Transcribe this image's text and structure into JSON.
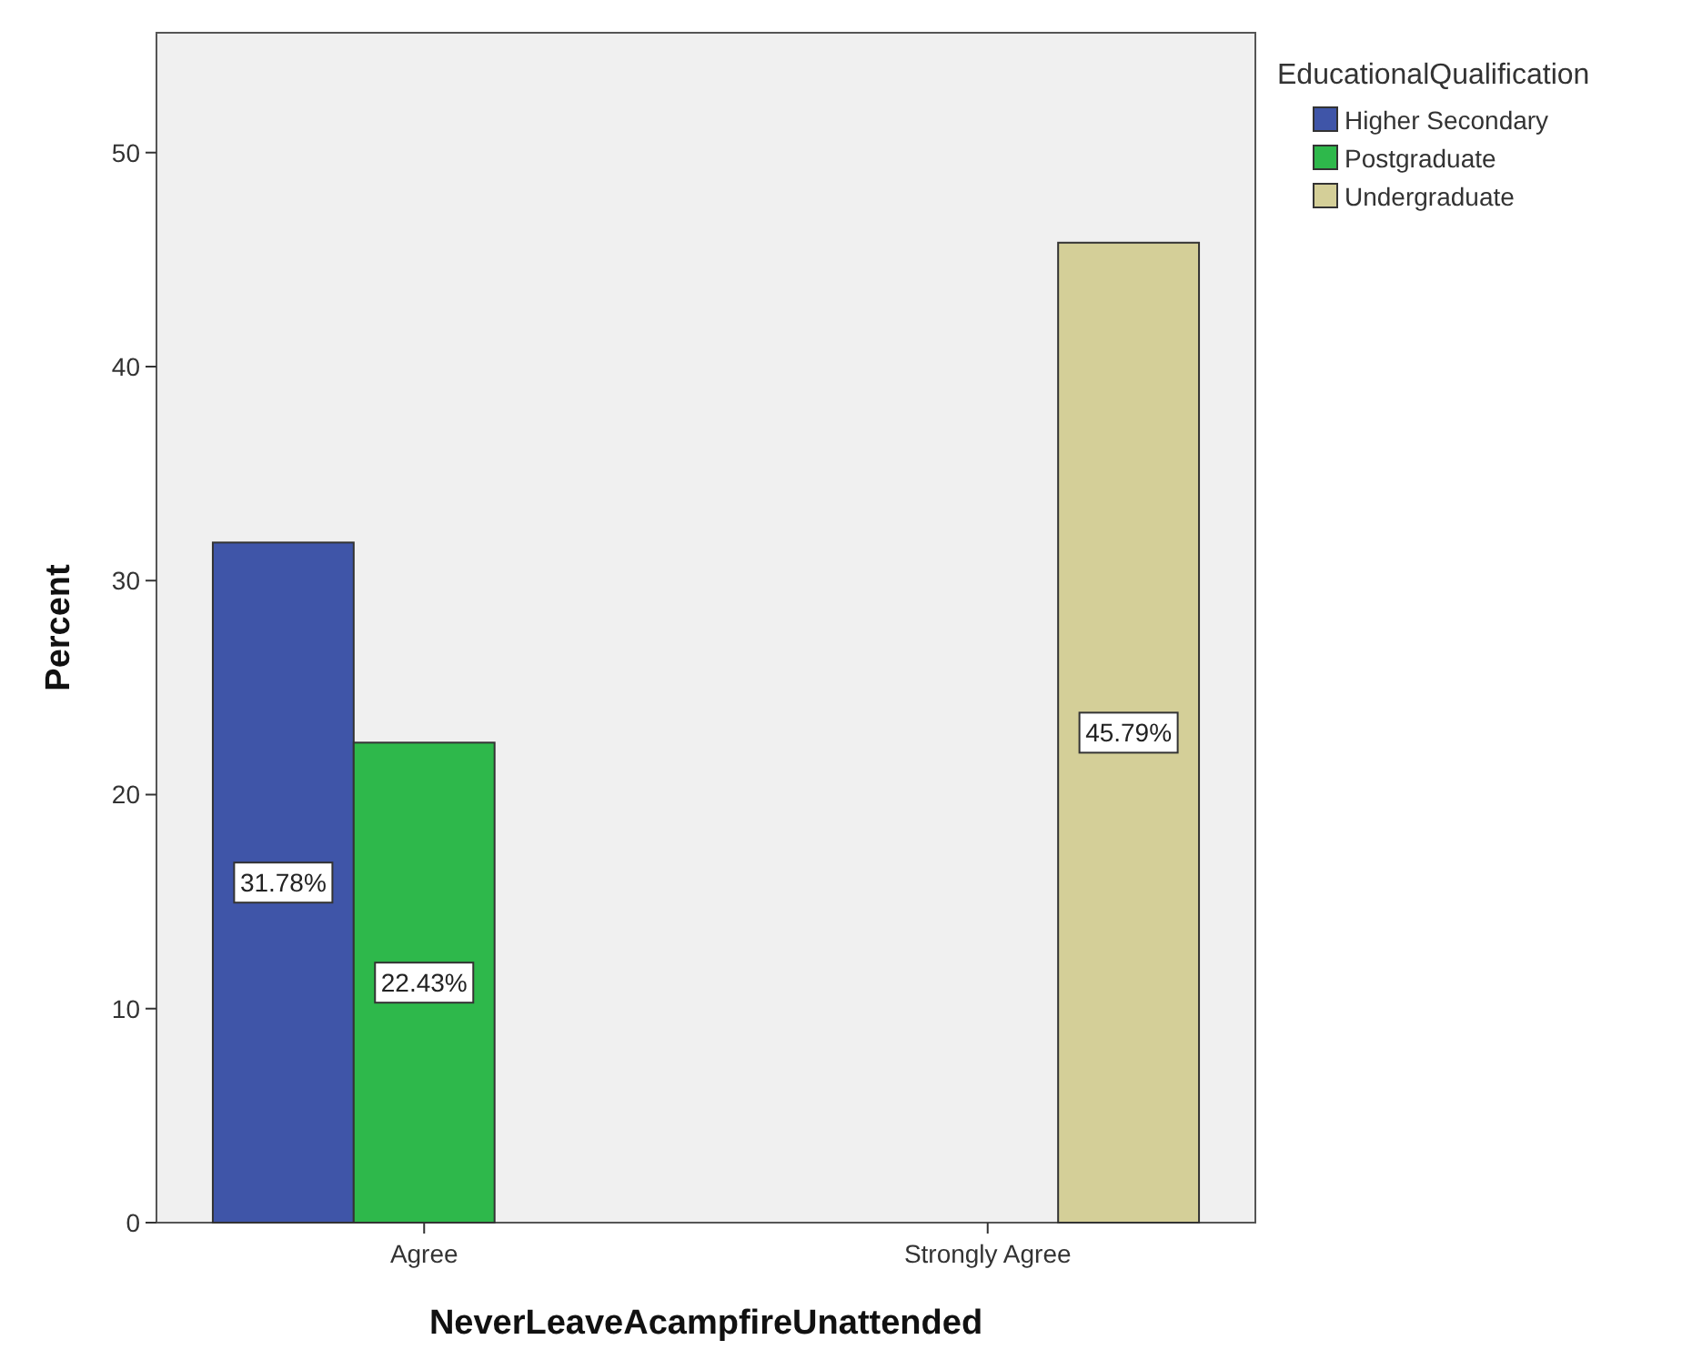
{
  "chart_data": {
    "type": "bar",
    "xlabel": "NeverLeaveAcampfireUnattended",
    "ylabel": "Percent",
    "legend_title": "EducationalQualification",
    "categories": [
      "Agree",
      "Strongly Agree"
    ],
    "series": [
      {
        "name": "Higher Secondary",
        "color": "#3f55a8",
        "values": [
          31.78,
          null
        ],
        "value_labels": [
          "31.78%",
          null
        ]
      },
      {
        "name": "Postgraduate",
        "color": "#2eb84b",
        "values": [
          22.43,
          null
        ],
        "value_labels": [
          "22.43%",
          null
        ]
      },
      {
        "name": "Undergraduate",
        "color": "#d4cf98",
        "values": [
          null,
          45.79
        ],
        "value_labels": [
          null,
          "45.79%"
        ]
      }
    ],
    "ylim": [
      0,
      55.6
    ],
    "yticks": [
      0,
      10,
      20,
      30,
      40,
      50
    ],
    "grid": false,
    "legend": "top right"
  }
}
